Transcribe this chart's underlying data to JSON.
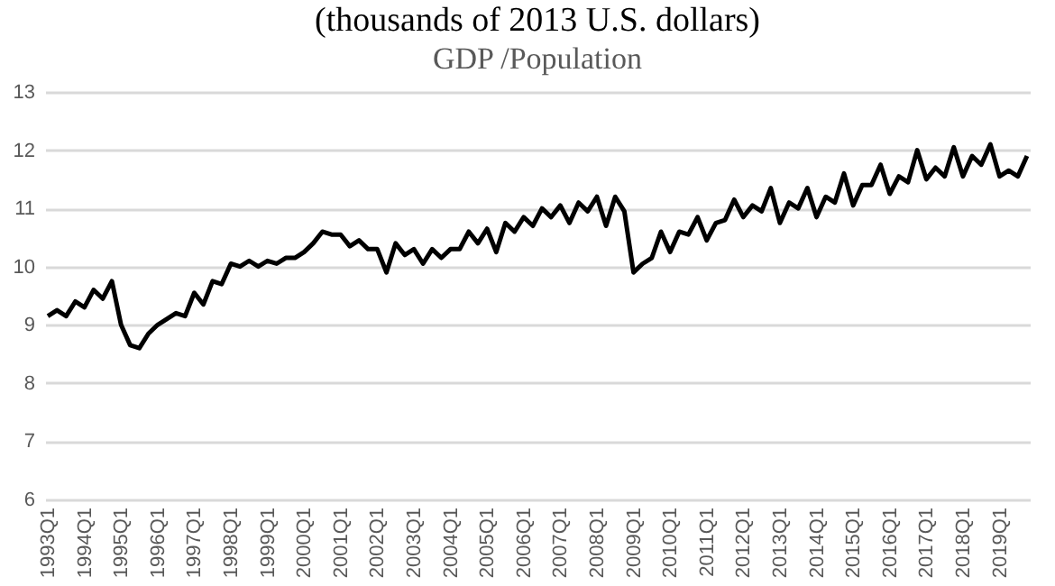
{
  "chart_data": {
    "type": "line",
    "title": "(thousands of 2013 U.S. dollars)",
    "subtitle": "GDP /Population",
    "categories": [
      "1993Q1",
      null,
      null,
      null,
      "1994Q1",
      null,
      null,
      null,
      "1995Q1",
      null,
      null,
      null,
      "1996Q1",
      null,
      null,
      null,
      "1997Q1",
      null,
      null,
      null,
      "1998Q1",
      null,
      null,
      null,
      "1999Q1",
      null,
      null,
      null,
      "2000Q1",
      null,
      null,
      null,
      "2001Q1",
      null,
      null,
      null,
      "2002Q1",
      null,
      null,
      null,
      "2003Q1",
      null,
      null,
      null,
      "2004Q1",
      null,
      null,
      null,
      "2005Q1",
      null,
      null,
      null,
      "2006Q1",
      null,
      null,
      null,
      "2007Q1",
      null,
      null,
      null,
      "2008Q1",
      null,
      null,
      null,
      "2009Q1",
      null,
      null,
      null,
      "2010Q1",
      null,
      null,
      null,
      "2011Q1",
      null,
      null,
      null,
      "2012Q1",
      null,
      null,
      null,
      "2013Q1",
      null,
      null,
      null,
      "2014Q1",
      null,
      null,
      null,
      "2015Q1",
      null,
      null,
      null,
      "2016Q1",
      null,
      null,
      null,
      "2017Q1",
      null,
      null,
      null,
      "2018Q1",
      null,
      null,
      null,
      "2019Q1",
      null,
      null,
      null
    ],
    "series": [
      {
        "color": "#000000",
        "values": [
          9.15,
          9.25,
          9.15,
          9.4,
          9.3,
          9.6,
          9.45,
          9.75,
          9.0,
          8.65,
          8.6,
          8.85,
          9.0,
          9.1,
          9.2,
          9.15,
          9.55,
          9.35,
          9.75,
          9.7,
          10.05,
          10.0,
          10.1,
          10.0,
          10.1,
          10.05,
          10.15,
          10.15,
          10.25,
          10.4,
          10.6,
          10.55,
          10.55,
          10.35,
          10.45,
          10.3,
          10.3,
          9.9,
          10.4,
          10.2,
          10.3,
          10.05,
          10.3,
          10.15,
          10.3,
          10.3,
          10.6,
          10.4,
          10.65,
          10.25,
          10.75,
          10.6,
          10.85,
          10.7,
          11.0,
          10.85,
          11.05,
          10.75,
          11.1,
          10.95,
          11.2,
          10.7,
          11.2,
          10.95,
          9.9,
          10.05,
          10.15,
          10.6,
          10.25,
          10.6,
          10.55,
          10.85,
          10.45,
          10.75,
          10.8,
          11.15,
          10.85,
          11.05,
          10.95,
          11.35,
          10.75,
          11.1,
          11.0,
          11.35,
          10.85,
          11.2,
          11.1,
          11.6,
          11.05,
          11.4,
          11.4,
          11.75,
          11.25,
          11.55,
          11.45,
          12.0,
          11.5,
          11.7,
          11.55,
          12.05,
          11.55,
          11.9,
          11.75,
          12.1,
          11.55,
          11.65,
          11.55,
          11.9
        ]
      }
    ],
    "ylim": [
      6,
      13
    ],
    "yticks": [
      6,
      7,
      8,
      9,
      10,
      11,
      12,
      13
    ],
    "grid": "y"
  }
}
